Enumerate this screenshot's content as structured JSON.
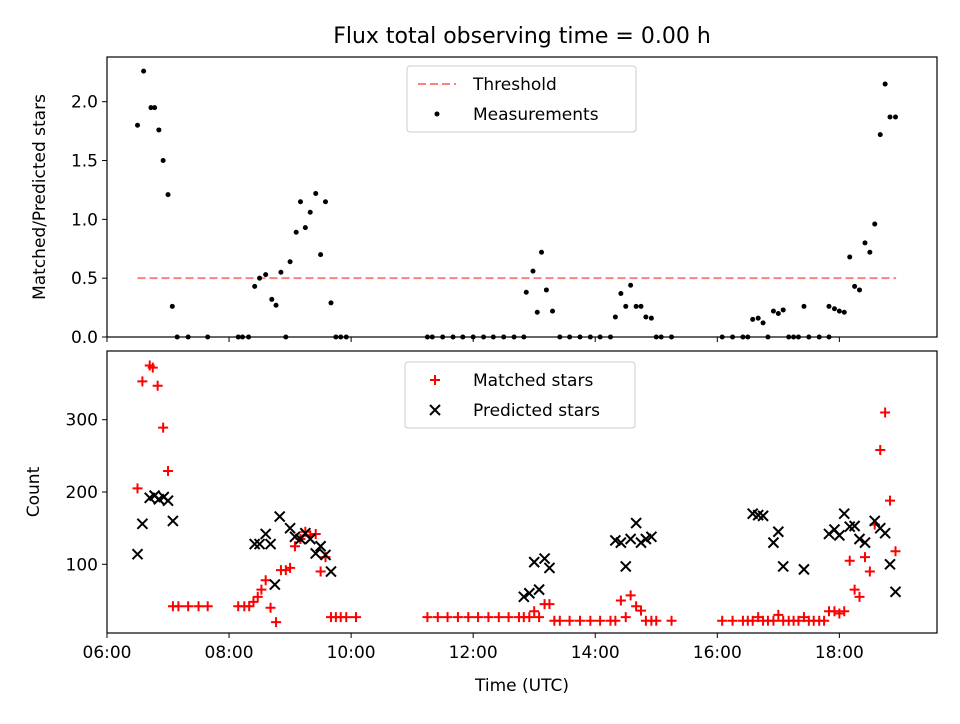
{
  "chart_data": [
    {
      "type": "scatter",
      "title": "Flux total observing time = 0.00 h",
      "xlabel": "",
      "ylabel": "Matched/Predicted stars",
      "xlim": [
        6.0,
        19.6
      ],
      "ylim": [
        0.0,
        2.38
      ],
      "yticks": [
        0.0,
        0.5,
        1.0,
        1.5,
        2.0
      ],
      "ytick_labels": [
        "0.0",
        "0.5",
        "1.0",
        "1.5",
        "2.0"
      ],
      "legend_position": "top-center",
      "threshold": {
        "name": "Threshold",
        "value": 0.5,
        "x_range": [
          6.5,
          18.93
        ],
        "color": "#ff7f7f",
        "style": "dashed"
      },
      "series": [
        {
          "name": "Measurements",
          "marker": "dot",
          "color": "#000000",
          "points": [
            [
              6.5,
              1.8
            ],
            [
              6.6,
              2.26
            ],
            [
              6.72,
              1.95
            ],
            [
              6.78,
              1.95
            ],
            [
              6.85,
              1.76
            ],
            [
              6.92,
              1.5
            ],
            [
              7.0,
              1.21
            ],
            [
              7.07,
              0.26
            ],
            [
              7.15,
              0.0
            ],
            [
              7.33,
              0.0
            ],
            [
              7.65,
              0.0
            ],
            [
              8.15,
              0.0
            ],
            [
              8.22,
              0.0
            ],
            [
              8.32,
              0.0
            ],
            [
              8.42,
              0.43
            ],
            [
              8.5,
              0.5
            ],
            [
              8.6,
              0.53
            ],
            [
              8.7,
              0.32
            ],
            [
              8.77,
              0.27
            ],
            [
              8.85,
              0.55
            ],
            [
              8.93,
              0.0
            ],
            [
              9.0,
              0.64
            ],
            [
              9.1,
              0.89
            ],
            [
              9.17,
              1.15
            ],
            [
              9.25,
              0.93
            ],
            [
              9.33,
              1.06
            ],
            [
              9.42,
              1.22
            ],
            [
              9.5,
              0.7
            ],
            [
              9.58,
              1.15
            ],
            [
              9.67,
              0.29
            ],
            [
              9.75,
              0.0
            ],
            [
              9.83,
              0.0
            ],
            [
              9.92,
              0.0
            ],
            [
              11.25,
              0.0
            ],
            [
              11.33,
              0.0
            ],
            [
              11.5,
              0.0
            ],
            [
              11.67,
              0.0
            ],
            [
              11.83,
              0.0
            ],
            [
              12.0,
              0.0
            ],
            [
              12.17,
              0.0
            ],
            [
              12.33,
              0.0
            ],
            [
              12.5,
              0.0
            ],
            [
              12.67,
              0.0
            ],
            [
              12.83,
              0.0
            ],
            [
              12.87,
              0.38
            ],
            [
              12.98,
              0.56
            ],
            [
              13.05,
              0.21
            ],
            [
              13.12,
              0.72
            ],
            [
              13.2,
              0.4
            ],
            [
              13.3,
              0.22
            ],
            [
              13.42,
              0.0
            ],
            [
              13.58,
              0.0
            ],
            [
              13.75,
              0.0
            ],
            [
              13.92,
              0.0
            ],
            [
              14.08,
              0.0
            ],
            [
              14.25,
              0.0
            ],
            [
              14.33,
              0.17
            ],
            [
              14.42,
              0.37
            ],
            [
              14.5,
              0.26
            ],
            [
              14.58,
              0.44
            ],
            [
              14.67,
              0.26
            ],
            [
              14.75,
              0.26
            ],
            [
              14.83,
              0.17
            ],
            [
              14.92,
              0.16
            ],
            [
              15.0,
              0.0
            ],
            [
              15.08,
              0.0
            ],
            [
              15.25,
              0.0
            ],
            [
              16.08,
              0.0
            ],
            [
              16.25,
              0.0
            ],
            [
              16.42,
              0.0
            ],
            [
              16.5,
              0.0
            ],
            [
              16.58,
              0.15
            ],
            [
              16.67,
              0.16
            ],
            [
              16.75,
              0.12
            ],
            [
              16.83,
              0.0
            ],
            [
              16.92,
              0.22
            ],
            [
              17.0,
              0.2
            ],
            [
              17.08,
              0.23
            ],
            [
              17.17,
              0.0
            ],
            [
              17.25,
              0.0
            ],
            [
              17.33,
              0.0
            ],
            [
              17.42,
              0.26
            ],
            [
              17.5,
              0.0
            ],
            [
              17.67,
              0.0
            ],
            [
              17.83,
              0.0
            ],
            [
              17.83,
              0.26
            ],
            [
              17.92,
              0.24
            ],
            [
              18.0,
              0.22
            ],
            [
              18.08,
              0.21
            ],
            [
              18.17,
              0.68
            ],
            [
              18.25,
              0.43
            ],
            [
              18.33,
              0.4
            ],
            [
              18.42,
              0.8
            ],
            [
              18.5,
              0.72
            ],
            [
              18.58,
              0.96
            ],
            [
              18.67,
              1.72
            ],
            [
              18.75,
              2.15
            ],
            [
              18.83,
              1.87
            ],
            [
              18.92,
              1.87
            ]
          ]
        }
      ]
    },
    {
      "type": "scatter",
      "title": "",
      "xlabel": "Time (UTC)",
      "ylabel": "Count",
      "xlim": [
        6.0,
        19.6
      ],
      "ylim": [
        5,
        395
      ],
      "xticks": [
        6,
        8,
        10,
        12,
        14,
        16,
        18
      ],
      "xtick_labels": [
        "06:00",
        "08:00",
        "10:00",
        "12:00",
        "14:00",
        "16:00",
        "18:00"
      ],
      "yticks": [
        100,
        200,
        300
      ],
      "ytick_labels": [
        "100",
        "200",
        "300"
      ],
      "legend_position": "top-center",
      "series": [
        {
          "name": "Matched stars",
          "marker": "plus",
          "color": "#ff0000",
          "points": [
            [
              6.5,
              205
            ],
            [
              6.58,
              353
            ],
            [
              6.7,
              375
            ],
            [
              6.75,
              372
            ],
            [
              6.83,
              347
            ],
            [
              6.92,
              289
            ],
            [
              7.0,
              229
            ],
            [
              7.08,
              42
            ],
            [
              7.17,
              42
            ],
            [
              7.33,
              42
            ],
            [
              7.5,
              42
            ],
            [
              7.65,
              42
            ],
            [
              8.15,
              42
            ],
            [
              8.25,
              42
            ],
            [
              8.33,
              42
            ],
            [
              8.4,
              48
            ],
            [
              8.47,
              55
            ],
            [
              8.53,
              65
            ],
            [
              8.6,
              78
            ],
            [
              8.68,
              40
            ],
            [
              8.77,
              20
            ],
            [
              8.85,
              92
            ],
            [
              8.93,
              92
            ],
            [
              9.0,
              95
            ],
            [
              9.08,
              125
            ],
            [
              9.17,
              135
            ],
            [
              9.25,
              145
            ],
            [
              9.33,
              140
            ],
            [
              9.42,
              142
            ],
            [
              9.5,
              90
            ],
            [
              9.58,
              110
            ],
            [
              9.67,
              27
            ],
            [
              9.75,
              27
            ],
            [
              9.83,
              27
            ],
            [
              9.92,
              27
            ],
            [
              10.08,
              27
            ],
            [
              11.25,
              27
            ],
            [
              11.42,
              27
            ],
            [
              11.58,
              27
            ],
            [
              11.75,
              27
            ],
            [
              11.92,
              27
            ],
            [
              12.08,
              27
            ],
            [
              12.25,
              27
            ],
            [
              12.42,
              27
            ],
            [
              12.58,
              27
            ],
            [
              12.75,
              27
            ],
            [
              12.83,
              27
            ],
            [
              12.92,
              27
            ],
            [
              13.0,
              35
            ],
            [
              13.08,
              27
            ],
            [
              13.17,
              45
            ],
            [
              13.25,
              45
            ],
            [
              13.33,
              22
            ],
            [
              13.42,
              22
            ],
            [
              13.58,
              22
            ],
            [
              13.75,
              22
            ],
            [
              13.92,
              22
            ],
            [
              14.08,
              22
            ],
            [
              14.25,
              22
            ],
            [
              14.33,
              22
            ],
            [
              14.42,
              50
            ],
            [
              14.5,
              27
            ],
            [
              14.58,
              57
            ],
            [
              14.67,
              42
            ],
            [
              14.75,
              36
            ],
            [
              14.83,
              22
            ],
            [
              14.92,
              22
            ],
            [
              15.0,
              22
            ],
            [
              15.25,
              22
            ],
            [
              16.08,
              22
            ],
            [
              16.25,
              22
            ],
            [
              16.42,
              22
            ],
            [
              16.5,
              22
            ],
            [
              16.58,
              22
            ],
            [
              16.67,
              27
            ],
            [
              16.75,
              22
            ],
            [
              16.83,
              22
            ],
            [
              16.92,
              22
            ],
            [
              17.0,
              30
            ],
            [
              17.08,
              22
            ],
            [
              17.17,
              22
            ],
            [
              17.25,
              22
            ],
            [
              17.33,
              22
            ],
            [
              17.42,
              27
            ],
            [
              17.5,
              22
            ],
            [
              17.58,
              22
            ],
            [
              17.67,
              22
            ],
            [
              17.75,
              22
            ],
            [
              17.83,
              35
            ],
            [
              17.92,
              35
            ],
            [
              18.0,
              32
            ],
            [
              18.08,
              35
            ],
            [
              18.17,
              105
            ],
            [
              18.25,
              65
            ],
            [
              18.33,
              55
            ],
            [
              18.42,
              110
            ],
            [
              18.5,
              90
            ],
            [
              18.58,
              155
            ],
            [
              18.67,
              258
            ],
            [
              18.75,
              310
            ],
            [
              18.83,
              188
            ],
            [
              18.92,
              118
            ]
          ]
        },
        {
          "name": "Predicted stars",
          "marker": "x",
          "color": "#000000",
          "points": [
            [
              6.5,
              114
            ],
            [
              6.58,
              156
            ],
            [
              6.7,
              192
            ],
            [
              6.78,
              195
            ],
            [
              6.85,
              190
            ],
            [
              6.93,
              193
            ],
            [
              7.0,
              188
            ],
            [
              7.08,
              160
            ],
            [
              8.42,
              128
            ],
            [
              8.5,
              128
            ],
            [
              8.6,
              142
            ],
            [
              8.68,
              128
            ],
            [
              8.75,
              72
            ],
            [
              8.83,
              166
            ],
            [
              9.0,
              150
            ],
            [
              9.08,
              138
            ],
            [
              9.17,
              135
            ],
            [
              9.25,
              143
            ],
            [
              9.33,
              135
            ],
            [
              9.42,
              115
            ],
            [
              9.5,
              125
            ],
            [
              9.58,
              113
            ],
            [
              9.67,
              90
            ],
            [
              12.83,
              55
            ],
            [
              12.92,
              60
            ],
            [
              13.0,
              103
            ],
            [
              13.08,
              65
            ],
            [
              13.17,
              108
            ],
            [
              13.25,
              95
            ],
            [
              14.33,
              133
            ],
            [
              14.42,
              130
            ],
            [
              14.5,
              97
            ],
            [
              14.58,
              135
            ],
            [
              14.67,
              157
            ],
            [
              14.75,
              130
            ],
            [
              14.83,
              135
            ],
            [
              14.92,
              138
            ],
            [
              16.58,
              170
            ],
            [
              16.67,
              168
            ],
            [
              16.75,
              167
            ],
            [
              16.92,
              130
            ],
            [
              17.0,
              145
            ],
            [
              17.08,
              97
            ],
            [
              17.42,
              93
            ],
            [
              17.83,
              142
            ],
            [
              17.92,
              148
            ],
            [
              18.0,
              140
            ],
            [
              18.08,
              170
            ],
            [
              18.17,
              152
            ],
            [
              18.25,
              153
            ],
            [
              18.33,
              135
            ],
            [
              18.42,
              130
            ],
            [
              18.58,
              160
            ],
            [
              18.67,
              150
            ],
            [
              18.75,
              143
            ],
            [
              18.83,
              100
            ],
            [
              18.92,
              62
            ]
          ]
        }
      ]
    }
  ]
}
